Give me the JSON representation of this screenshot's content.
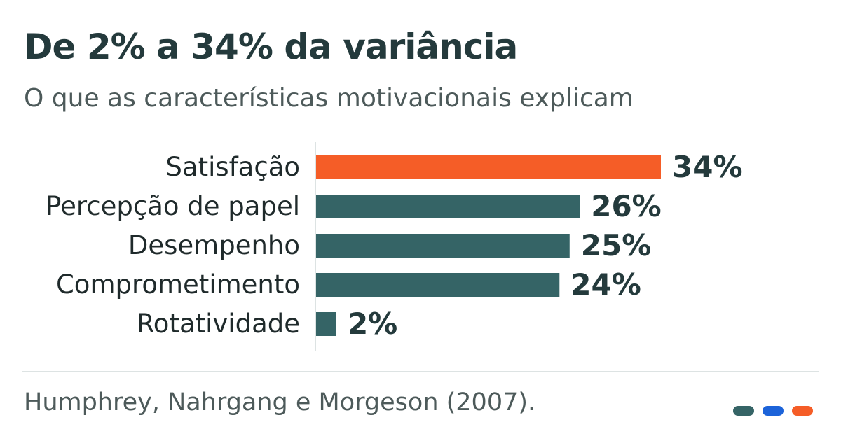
{
  "title": "De 2% a 34% da variância",
  "subtitle": "O que as características motivacionais explicam",
  "source": "Humphrey, Nahrgang e Morgeson (2007).",
  "colors": {
    "highlight": "#f55d27",
    "bar": "#356466",
    "text_dark": "#243a3c",
    "text_muted": "#4d5a5a",
    "axis": "#dde3e3",
    "brand": [
      "#356466",
      "#1c63d9",
      "#f55d27"
    ]
  },
  "chart_data": {
    "type": "bar",
    "orientation": "horizontal",
    "categories": [
      "Satisfação",
      "Percepção de papel",
      "Desempenho",
      "Comprometimento",
      "Rotatividade"
    ],
    "values": [
      34,
      26,
      25,
      24,
      2
    ],
    "value_labels": [
      "34%",
      "26%",
      "25%",
      "24%",
      "2%"
    ],
    "highlight_index": 0,
    "unit": "%",
    "xlim": [
      0,
      34
    ],
    "grid": false,
    "legend": "none"
  }
}
